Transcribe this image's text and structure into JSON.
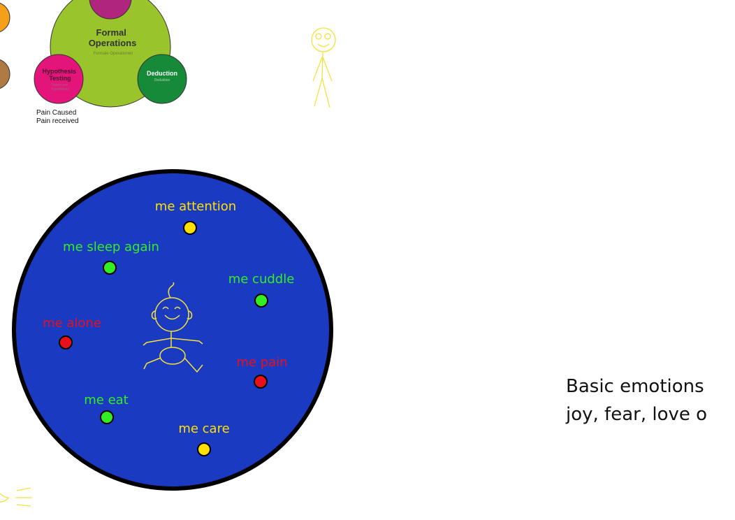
{
  "piaget": {
    "main_title": "Formal\nOperations",
    "main_subtitle": "Formale Operationen",
    "hypothesis_title": "Hypothesis\nTesting",
    "hypothesis_subtitle": "Testen von\nHypothesen",
    "deduction_title": "Deduction",
    "deduction_subtitle": "Deduktion",
    "colors": {
      "main": "#9ac42c",
      "hypothesis": "#e4157a",
      "deduction": "#178a3a",
      "top_child": "#b0267e",
      "left_orange": "#f6a01a",
      "left_brown": "#b07a45"
    }
  },
  "caption": {
    "line1": "Pain Caused",
    "line2": "Pain received"
  },
  "needs_circle": {
    "fill": "#1a3ac2",
    "border": "#000000",
    "items": [
      {
        "label": "me attention",
        "color": "yellow"
      },
      {
        "label": "me sleep again",
        "color": "green"
      },
      {
        "label": "me cuddle",
        "color": "green"
      },
      {
        "label": "me alone",
        "color": "red"
      },
      {
        "label": "me pain",
        "color": "red"
      },
      {
        "label": "me eat",
        "color": "green"
      },
      {
        "label": "me care",
        "color": "yellow"
      }
    ],
    "palette": {
      "yellow": "#ffe100",
      "green": "#33ee22",
      "red": "#e8101a"
    }
  },
  "emotions": {
    "line1": "Basic emotions",
    "line2": "joy, fear, love o"
  }
}
